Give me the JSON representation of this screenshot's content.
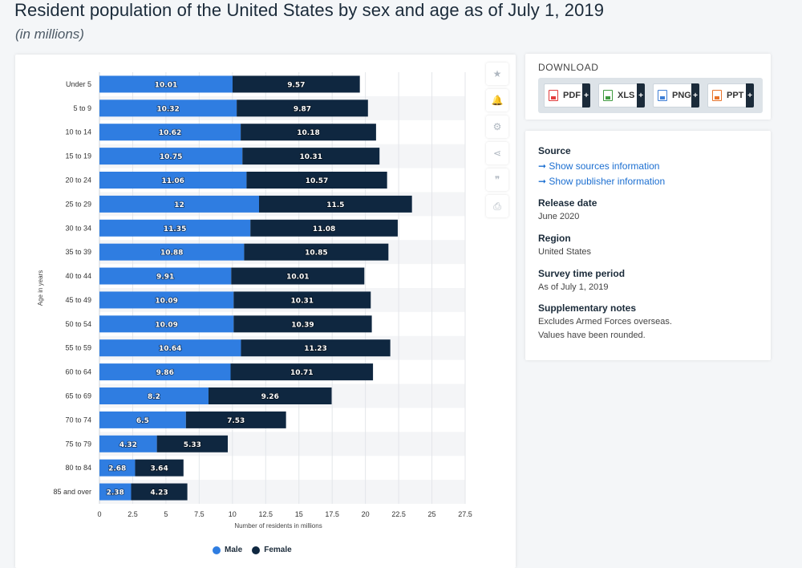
{
  "page": {
    "title": "Resident population of the United States by sex and age as of July 1, 2019",
    "subtitle": "(in millions)"
  },
  "chart_data": {
    "type": "bar",
    "orientation": "horizontal",
    "stacked": true,
    "categories": [
      "Under 5",
      "5 to 9",
      "10 to 14",
      "15 to 19",
      "20 to 24",
      "25 to 29",
      "30 to 34",
      "35 to 39",
      "40 to 44",
      "45 to 49",
      "50 to 54",
      "55 to 59",
      "60 to 64",
      "65 to 69",
      "70 to 74",
      "75 to 79",
      "80 to 84",
      "85 and over"
    ],
    "series": [
      {
        "name": "Male",
        "color": "#2f7de1",
        "values": [
          10.01,
          10.32,
          10.62,
          10.75,
          11.06,
          12,
          11.35,
          10.88,
          9.91,
          10.09,
          10.09,
          10.64,
          9.86,
          8.2,
          6.5,
          4.32,
          2.68,
          2.38
        ]
      },
      {
        "name": "Female",
        "color": "#0f2740",
        "values": [
          9.57,
          9.87,
          10.18,
          10.31,
          10.57,
          11.5,
          11.08,
          10.85,
          10.01,
          10.31,
          10.39,
          11.23,
          10.71,
          9.26,
          7.53,
          5.33,
          3.64,
          4.23
        ]
      }
    ],
    "xlabel": "Number of residents in millions",
    "ylabel": "Age in years",
    "xlim": [
      0,
      27.5
    ],
    "xticks": [
      0,
      2.5,
      5,
      7.5,
      10,
      12.5,
      15,
      17.5,
      20,
      22.5,
      25,
      27.5
    ],
    "xtick_labels": [
      "0",
      "2.5",
      "5",
      "7.5",
      "10",
      "12.5",
      "15",
      "17.5",
      "20",
      "22.5",
      "25",
      "27.5"
    ],
    "grid": true,
    "legend": "bottom"
  },
  "toolbar": {
    "items": [
      {
        "name": "favorite-button",
        "icon": "star-icon",
        "glyph": "★"
      },
      {
        "name": "notify-button",
        "icon": "bell-icon",
        "glyph": "🔔"
      },
      {
        "name": "settings-button",
        "icon": "gear-icon",
        "glyph": "⚙"
      },
      {
        "name": "share-button",
        "icon": "share-icon",
        "glyph": "⋖"
      },
      {
        "name": "cite-button",
        "icon": "quote-icon",
        "glyph": "❞"
      },
      {
        "name": "print-button",
        "icon": "printer-icon",
        "glyph": "⎙"
      }
    ]
  },
  "download": {
    "title": "DOWNLOAD",
    "buttons": [
      {
        "label": "PDF",
        "plus": "+",
        "color": "#e23c3c"
      },
      {
        "label": "XLS",
        "plus": "+",
        "color": "#3f9b3f"
      },
      {
        "label": "PNG",
        "plus": "+",
        "color": "#3f7fd6"
      },
      {
        "label": "PPT",
        "plus": "+",
        "color": "#e8742a"
      }
    ]
  },
  "info": {
    "source_heading": "Source",
    "show_sources": "➞ Show sources information",
    "show_publisher": "➞ Show publisher information",
    "release_heading": "Release date",
    "release_value": "June 2020",
    "region_heading": "Region",
    "region_value": "United States",
    "survey_heading": "Survey time period",
    "survey_value": "As of July 1, 2019",
    "notes_heading": "Supplementary notes",
    "notes_line1": "Excludes Armed Forces overseas.",
    "notes_line2": "Values have been rounded."
  }
}
